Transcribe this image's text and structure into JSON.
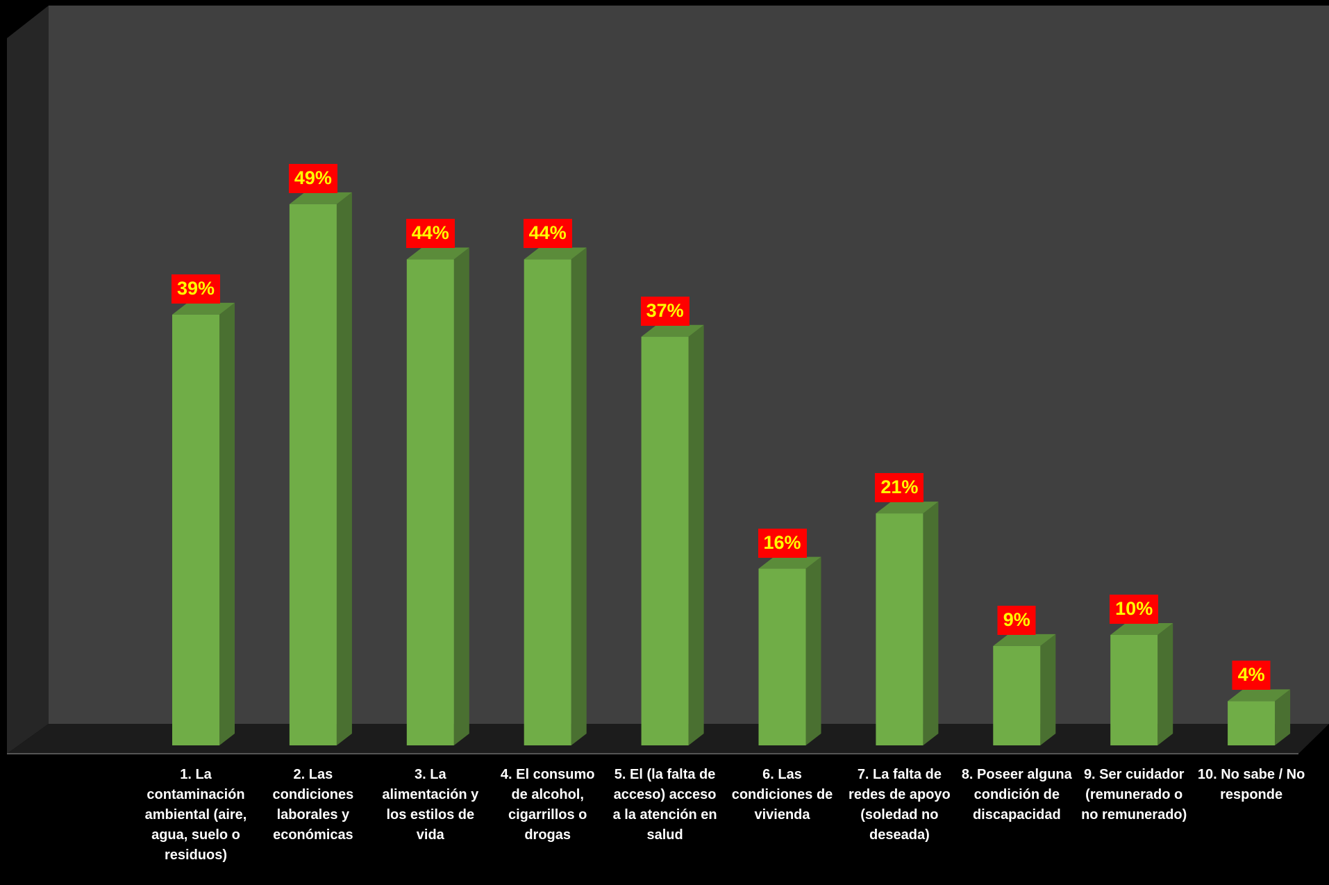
{
  "chart_data": {
    "type": "bar",
    "categories": [
      "1. La contaminación ambiental (aire, agua, suelo o residuos)",
      "2. Las condiciones laborales y económicas",
      "3. La alimentación y los estilos de vida",
      "4. El consumo de alcohol, cigarrillos o drogas",
      "5. El (la falta de acceso) acceso a la atención en salud",
      "6. Las condiciones de vivienda",
      "7. La falta de redes de apoyo (soledad no deseada)",
      "8. Poseer alguna condición de discapacidad",
      "9. Ser cuidador (remunerado o no remunerado)",
      "10. No sabe / No responde"
    ],
    "values": [
      39,
      49,
      44,
      44,
      37,
      16,
      21,
      9,
      10,
      4
    ],
    "value_labels": [
      "39%",
      "49%",
      "44%",
      "44%",
      "37%",
      "16%",
      "21%",
      "9%",
      "10%",
      "4%"
    ],
    "ylim": [
      0,
      50
    ],
    "grid": false,
    "legend": "none",
    "colors": {
      "bar_front": "#70ad47",
      "bar_side": "#4a7031",
      "bar_top": "#5b8c3a",
      "back_wall": "#404040",
      "side_wall": "#262626",
      "floor": "#1c1c1c",
      "label_bg": "#ff0000",
      "label_text": "#ffff00",
      "category_text": "#ffffff"
    }
  }
}
